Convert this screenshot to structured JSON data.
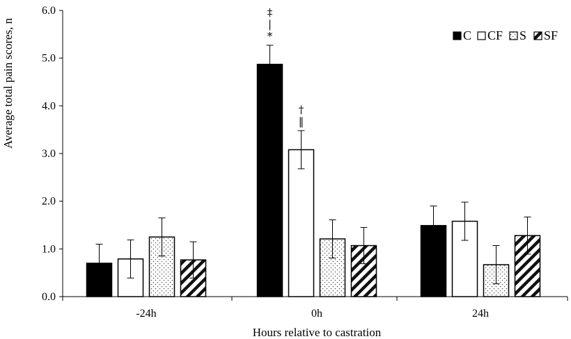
{
  "chart_data": {
    "type": "bar",
    "title": "",
    "xlabel": "Hours relative to castration",
    "ylabel": "Average total pain scores, n",
    "ylim": [
      0,
      6
    ],
    "yticks": [
      "0.0",
      "1.0",
      "2.0",
      "3.0",
      "4.0",
      "5.0",
      "6.0"
    ],
    "categories": [
      "-24h",
      "0h",
      "24h"
    ],
    "legend_position": "top-right",
    "series": [
      {
        "name": "C",
        "fill": "solid",
        "values": [
          0.7,
          4.87,
          1.49
        ],
        "errors": [
          0.4,
          0.4,
          0.41
        ]
      },
      {
        "name": "CF",
        "fill": "open",
        "values": [
          0.79,
          3.08,
          1.58
        ],
        "errors": [
          0.4,
          0.4,
          0.4
        ]
      },
      {
        "name": "S",
        "fill": "dotted",
        "values": [
          1.25,
          1.21,
          0.67
        ],
        "errors": [
          0.4,
          0.4,
          0.4
        ]
      },
      {
        "name": "SF",
        "fill": "hatched",
        "values": [
          0.77,
          1.07,
          1.28
        ],
        "errors": [
          0.38,
          0.38,
          0.39
        ]
      }
    ],
    "annotations": [
      {
        "category": "0h",
        "series": "C",
        "symbols": [
          "‡",
          "|",
          "*"
        ]
      },
      {
        "category": "0h",
        "series": "CF",
        "symbols": [
          "†",
          "‖"
        ]
      }
    ]
  }
}
